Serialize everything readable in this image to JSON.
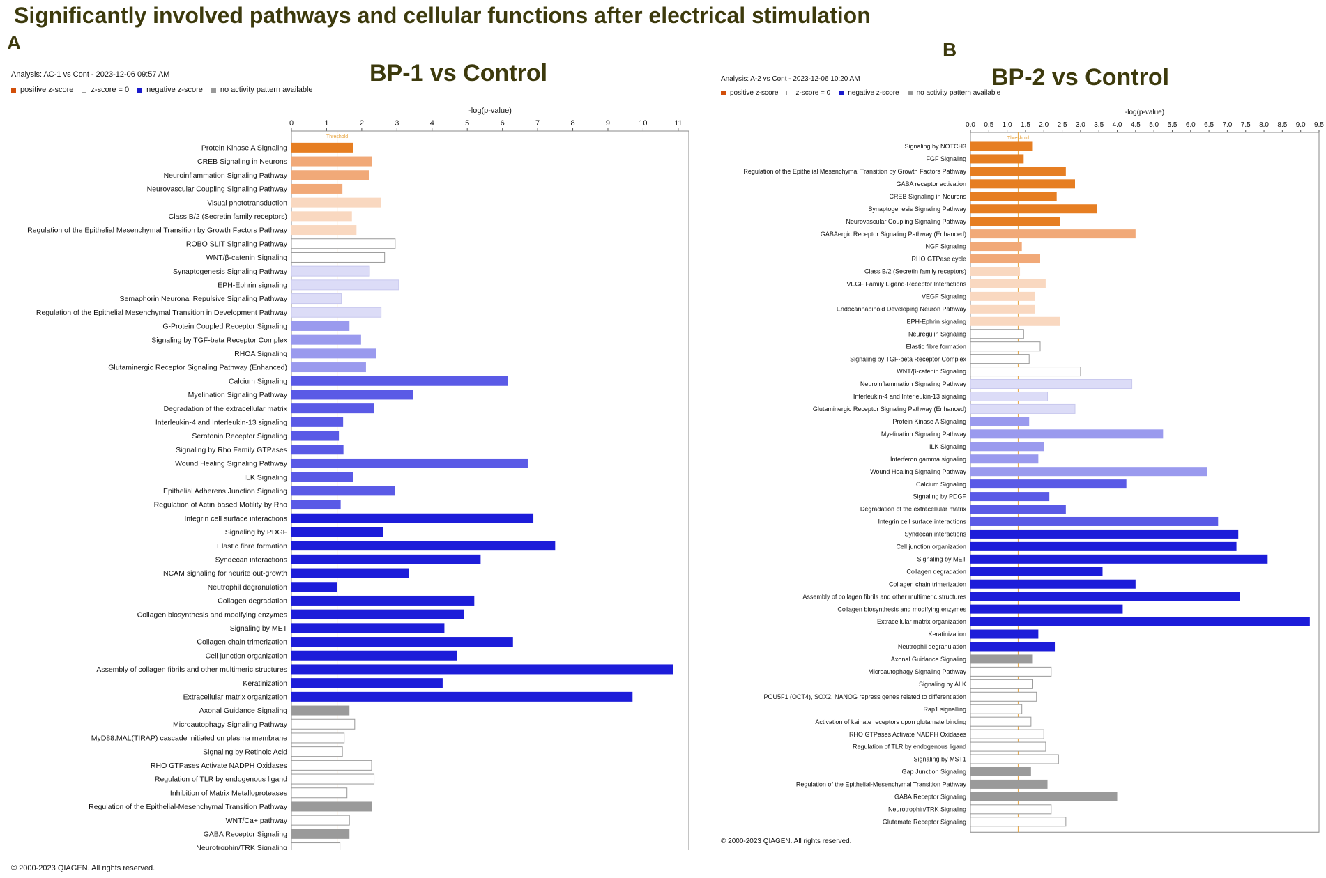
{
  "title": "Significantly involved pathways and cellular functions after electrical stimulation",
  "legend": {
    "positive": "positive z-score",
    "zero": "z-score = 0",
    "negative": "negative z-score",
    "na": "no activity pattern available"
  },
  "colors": {
    "pos3": "#e67e22",
    "pos2": "#f1a978",
    "pos1": "#f9d8c0",
    "zero": "#ffffff",
    "neg1": "#dcdcf7",
    "neg2": "#9a9aee",
    "neg3": "#5a5ae6",
    "neg4": "#1d1dd9",
    "na": "#9a9a9a",
    "threshold": "#e6a23c"
  },
  "chart_data": [
    {
      "type": "bar",
      "orientation": "horizontal",
      "panel_label": "A",
      "title": "BP-1 vs Control",
      "analysis": "Analysis: AC-1 vs Cont - 2023-12-06 09:57 AM",
      "xlabel": "-log(p-value)",
      "xlim": [
        0,
        11.3
      ],
      "ticks": [
        "0",
        "1",
        "2",
        "3",
        "4",
        "5",
        "6",
        "7",
        "8",
        "9",
        "10",
        "11"
      ],
      "threshold": 1.3,
      "threshold_label": "Threshold",
      "copyright": "© 2000-2023 QIAGEN. All rights reserved.",
      "categories": [
        "Protein Kinase A Signaling",
        "CREB Signaling in Neurons",
        "Neuroinflammation Signaling Pathway",
        "Neurovascular Coupling Signaling Pathway",
        "Visual phototransduction",
        "Class B/2 (Secretin family receptors)",
        "Regulation of the Epithelial Mesenchymal Transition by Growth Factors Pathway",
        "ROBO SLIT Signaling Pathway",
        "WNT/β-catenin Signaling",
        "Synaptogenesis Signaling Pathway",
        "EPH-Ephrin signaling",
        "Semaphorin Neuronal Repulsive Signaling Pathway",
        "Regulation of the Epithelial Mesenchymal Transition in Development Pathway",
        "G-Protein Coupled Receptor Signaling",
        "Signaling by TGF-beta Receptor Complex",
        "RHOA Signaling",
        "Glutaminergic Receptor Signaling Pathway (Enhanced)",
        "Calcium Signaling",
        "Myelination Signaling Pathway",
        "Degradation of the extracellular matrix",
        "Interleukin-4 and Interleukin-13 signaling",
        "Serotonin Receptor Signaling",
        "Signaling by Rho Family GTPases",
        "Wound Healing Signaling Pathway",
        "ILK Signaling",
        "Epithelial Adherens Junction Signaling",
        "Regulation of Actin-based Motility by Rho",
        "Integrin cell surface interactions",
        "Signaling by PDGF",
        "Elastic fibre formation",
        "Syndecan interactions",
        "NCAM signaling for neurite out-growth",
        "Neutrophil degranulation",
        "Collagen degradation",
        "Collagen biosynthesis and modifying enzymes",
        "Signaling by MET",
        "Collagen chain trimerization",
        "Cell junction organization",
        "Assembly of collagen fibrils and other multimeric structures",
        "Keratinization",
        "Extracellular matrix organization",
        "Axonal Guidance Signaling",
        "Microautophagy Signaling Pathway",
        "MyD88:MAL(TIRAP) cascade initiated on plasma membrane",
        "Signaling by Retinoic Acid",
        "RHO GTPases Activate NADPH Oxidases",
        "Regulation of TLR by endogenous ligand",
        "Inhibition of Matrix Metalloproteases",
        "Regulation of the Epithelial-Mesenchymal Transition Pathway",
        "WNT/Ca+ pathway",
        "GABA Receptor Signaling",
        "Neurotrophin/TRK Signaling"
      ],
      "values": [
        1.75,
        2.28,
        2.22,
        1.45,
        2.55,
        1.72,
        1.85,
        2.95,
        2.65,
        2.22,
        3.05,
        1.42,
        2.55,
        1.65,
        1.98,
        2.4,
        2.12,
        6.15,
        3.45,
        2.35,
        1.47,
        1.35,
        1.48,
        6.72,
        1.75,
        2.95,
        1.4,
        6.88,
        2.6,
        7.5,
        5.38,
        3.35,
        1.3,
        5.2,
        4.9,
        4.35,
        6.3,
        4.7,
        10.85,
        4.3,
        9.7,
        1.65,
        1.8,
        1.5,
        1.45,
        2.28,
        2.35,
        1.58,
        2.28,
        1.65,
        1.65,
        1.38
      ],
      "colors": [
        "pos3",
        "pos2",
        "pos2",
        "pos2",
        "pos1",
        "pos1",
        "pos1",
        "zero",
        "zero",
        "neg1",
        "neg1",
        "neg1",
        "neg1",
        "neg2",
        "neg2",
        "neg2",
        "neg2",
        "neg3",
        "neg3",
        "neg3",
        "neg3",
        "neg3",
        "neg3",
        "neg3",
        "neg3",
        "neg3",
        "neg3",
        "neg4",
        "neg4",
        "neg4",
        "neg4",
        "neg4",
        "neg4",
        "neg4",
        "neg4",
        "neg4",
        "neg4",
        "neg4",
        "neg4",
        "neg4",
        "neg4",
        "na",
        "zero",
        "zero",
        "zero",
        "zero",
        "zero",
        "zero",
        "na",
        "zero",
        "na",
        "zero"
      ]
    },
    {
      "type": "bar",
      "orientation": "horizontal",
      "panel_label": "B",
      "title": "BP-2 vs Control",
      "analysis": "Analysis: A-2 vs Cont - 2023-12-06 10:20 AM",
      "xlabel": "-log(p-value)",
      "xlim": [
        0,
        9.5
      ],
      "ticks": [
        "0.0",
        "0.5",
        "1.0",
        "1.5",
        "2.0",
        "2.5",
        "3.0",
        "3.5",
        "4.0",
        "4.5",
        "5.0",
        "5.5",
        "6.0",
        "6.5",
        "7.0",
        "7.5",
        "8.0",
        "8.5",
        "9.0",
        "9.5"
      ],
      "threshold": 1.3,
      "threshold_label": "Threshold",
      "copyright": "© 2000-2023 QIAGEN. All rights reserved.",
      "categories": [
        "Signaling by NOTCH3",
        "FGF Signaling",
        "Regulation of the Epithelial Mesenchymal Transition by Growth Factors Pathway",
        "GABA receptor activation",
        "CREB Signaling in Neurons",
        "Synaptogenesis Signaling Pathway",
        "Neurovascular Coupling Signaling Pathway",
        "GABAergic Receptor Signaling Pathway (Enhanced)",
        "NGF Signaling",
        "RHO GTPase cycle",
        "Class B/2 (Secretin family receptors)",
        "VEGF Family Ligand-Receptor Interactions",
        "VEGF Signaling",
        "Endocannabinoid Developing Neuron Pathway",
        "EPH-Ephrin signaling",
        "Neuregulin Signaling",
        "Elastic fibre formation",
        "Signaling by TGF-beta Receptor Complex",
        "WNT/β-catenin Signaling",
        "Neuroinflammation Signaling Pathway",
        "Interleukin-4 and Interleukin-13 signaling",
        "Glutaminergic Receptor Signaling Pathway (Enhanced)",
        "Protein Kinase A Signaling",
        "Myelination Signaling Pathway",
        "ILK Signaling",
        "Interferon gamma signaling",
        "Wound Healing Signaling Pathway",
        "Calcium Signaling",
        "Signaling by PDGF",
        "Degradation of the extracellular matrix",
        "Integrin cell surface interactions",
        "Syndecan interactions",
        "Cell junction organization",
        "Signaling by MET",
        "Collagen degradation",
        "Collagen chain trimerization",
        "Assembly of collagen fibrils and other multimeric structures",
        "Collagen biosynthesis and modifying enzymes",
        "Extracellular matrix organization",
        "Keratinization",
        "Neutrophil degranulation",
        "Axonal Guidance Signaling",
        "Microautophagy Signaling Pathway",
        "Signaling by ALK",
        "POU5F1 (OCT4), SOX2, NANOG repress genes related to differentiation",
        "Rap1 signalling",
        "Activation of kainate receptors upon glutamate binding",
        "RHO GTPases Activate NADPH Oxidases",
        "Regulation of TLR by endogenous ligand",
        "Signaling by MST1",
        "Gap Junction Signaling",
        "Regulation of the Epithelial-Mesenchymal Transition Pathway",
        "GABA Receptor Signaling",
        "Neurotrophin/TRK Signaling",
        "Glutamate Receptor Signaling"
      ],
      "values": [
        1.7,
        1.45,
        2.6,
        2.85,
        2.35,
        3.45,
        2.45,
        4.5,
        1.4,
        1.9,
        1.35,
        2.05,
        1.75,
        1.75,
        2.45,
        1.45,
        1.9,
        1.6,
        3.0,
        4.4,
        2.1,
        2.85,
        1.6,
        5.25,
        2.0,
        1.85,
        6.45,
        4.25,
        2.15,
        2.6,
        6.75,
        7.3,
        7.25,
        8.1,
        3.6,
        4.5,
        7.35,
        4.15,
        9.25,
        1.85,
        2.3,
        1.7,
        2.2,
        1.7,
        1.8,
        1.4,
        1.65,
        2.0,
        2.05,
        2.4,
        1.65,
        2.1,
        4.0,
        2.2,
        2.6
      ],
      "colors": [
        "pos3",
        "pos3",
        "pos3",
        "pos3",
        "pos3",
        "pos3",
        "pos3",
        "pos2",
        "pos2",
        "pos2",
        "pos1",
        "pos1",
        "pos1",
        "pos1",
        "pos1",
        "zero",
        "zero",
        "zero",
        "zero",
        "neg1",
        "neg1",
        "neg1",
        "neg2",
        "neg2",
        "neg2",
        "neg2",
        "neg2",
        "neg3",
        "neg3",
        "neg3",
        "neg3",
        "neg4",
        "neg4",
        "neg4",
        "neg4",
        "neg4",
        "neg4",
        "neg4",
        "neg4",
        "neg4",
        "neg4",
        "na",
        "zero",
        "zero",
        "zero",
        "zero",
        "zero",
        "zero",
        "zero",
        "zero",
        "na",
        "na",
        "na",
        "zero",
        "zero"
      ]
    }
  ]
}
